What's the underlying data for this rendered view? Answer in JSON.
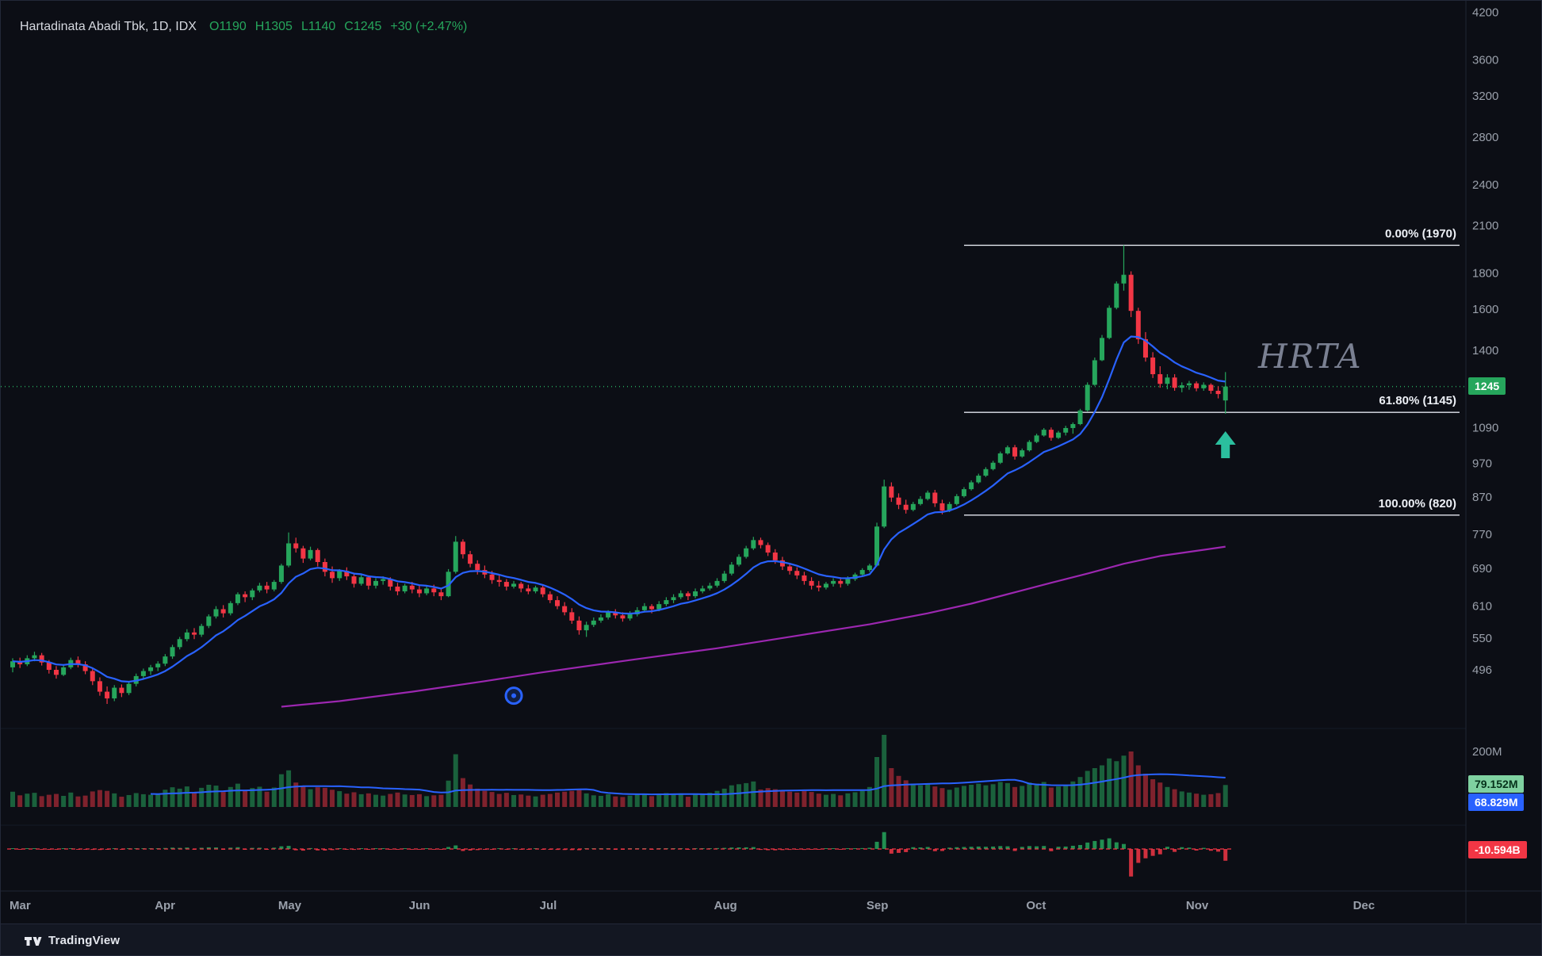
{
  "header": {
    "symbol_title": "Hartadinata Abadi Tbk, 1D, IDX",
    "open": "O1190",
    "high": "H1305",
    "low": "L1140",
    "close": "C1245",
    "change": "+30 (+2.47%)"
  },
  "watermark": {
    "text": "HRTA"
  },
  "price_axis": {
    "ticks": [
      4200,
      3600,
      3200,
      2800,
      2400,
      2100,
      1800,
      1600,
      1400,
      1090,
      970,
      870,
      770,
      690,
      610,
      550,
      496
    ],
    "volume_tick": "200M",
    "last_price_badge": "1245",
    "volume_badge": "79.152M",
    "volume_ma_badge": "68.829M",
    "net_flow_badge": "-10.594B",
    "badge_colors": {
      "last_price_bg": "#26a65c",
      "volume_bg": "#7fd1a0",
      "volume_text": "#06321b",
      "volume_ma_bg": "#2962ff",
      "net_flow_bg": "#f23645"
    }
  },
  "time_axis": {
    "months": [
      {
        "label": "Mar",
        "bar": 0
      },
      {
        "label": "Apr",
        "bar": 20
      },
      {
        "label": "May",
        "bar": 37
      },
      {
        "label": "Jun",
        "bar": 55
      },
      {
        "label": "Jul",
        "bar": 73
      },
      {
        "label": "Aug",
        "bar": 97
      },
      {
        "label": "Sep",
        "bar": 118
      },
      {
        "label": "Oct",
        "bar": 140
      },
      {
        "label": "Nov",
        "bar": 162
      },
      {
        "label": "Dec",
        "bar": 185
      }
    ]
  },
  "footer": {
    "brand": "TradingView"
  },
  "chart_data": {
    "type": "candlestick",
    "symbol": "HRTA",
    "name": "Hartadinata Abadi Tbk",
    "exchange": "IDX",
    "interval": "1D",
    "scale": "log",
    "visible_price_range": [
      440,
      4200
    ],
    "visible_time_range": [
      "Mar",
      "Dec"
    ],
    "last": {
      "open": 1190,
      "high": 1305,
      "low": 1140,
      "close": 1245,
      "change": 30,
      "change_pct": 2.47,
      "prev_close": 1215
    },
    "fib_levels": [
      {
        "label": "0.00% (1970)",
        "pct": 0.0,
        "price": 1970
      },
      {
        "label": "61.80% (1145)",
        "pct": 61.8,
        "price": 1145
      },
      {
        "label": "100.00% (820)",
        "pct": 100.0,
        "price": 820
      }
    ],
    "colors": {
      "up": "#26a65c",
      "down": "#f23645",
      "vol_up": "rgba(38,166,92,0.55)",
      "vol_down": "rgba(242,54,69,0.5)",
      "flow_up": "#26a65c",
      "flow_down": "#f23645",
      "ma_fast": "#2962ff",
      "ma_slow": "#9c27b0",
      "fib": "#e3e6ee",
      "arrow": "#2bbf9e"
    },
    "overlays": {
      "fast_ma": "EMA10 (computed from closes)",
      "long_ma_points": [
        [
          37,
          440
        ],
        [
          45,
          448
        ],
        [
          55,
          462
        ],
        [
          65,
          478
        ],
        [
          73,
          492
        ],
        [
          85,
          512
        ],
        [
          97,
          532
        ],
        [
          107,
          552
        ],
        [
          118,
          575
        ],
        [
          126,
          596
        ],
        [
          132,
          615
        ],
        [
          138,
          638
        ],
        [
          143,
          658
        ],
        [
          148,
          678
        ],
        [
          153,
          700
        ],
        [
          158,
          718
        ],
        [
          163,
          730
        ],
        [
          167,
          740
        ]
      ],
      "volume_ma_period": 20
    },
    "markers": {
      "arrow_up": {
        "bar": 167
      },
      "circle": {
        "bar": 69,
        "price": 456
      }
    },
    "candles": [
      [
        500,
        515,
        492,
        510,
        55,
        0.4
      ],
      [
        510,
        516,
        499,
        505,
        42,
        -0.3
      ],
      [
        505,
        520,
        502,
        515,
        48,
        0.6
      ],
      [
        515,
        526,
        510,
        520,
        51,
        0.5
      ],
      [
        520,
        524,
        503,
        508,
        39,
        -0.4
      ],
      [
        508,
        512,
        490,
        496,
        44,
        -0.6
      ],
      [
        496,
        502,
        482,
        488,
        47,
        -0.5
      ],
      [
        488,
        504,
        486,
        500,
        40,
        0.3
      ],
      [
        500,
        516,
        497,
        512,
        52,
        0.7
      ],
      [
        512,
        518,
        500,
        505,
        38,
        -0.2
      ],
      [
        505,
        510,
        489,
        494,
        41,
        -0.4
      ],
      [
        494,
        498,
        472,
        478,
        56,
        -0.8
      ],
      [
        478,
        484,
        456,
        462,
        61,
        -0.9
      ],
      [
        462,
        470,
        444,
        452,
        58,
        -0.7
      ],
      [
        452,
        472,
        448,
        468,
        49,
        0.4
      ],
      [
        468,
        473,
        454,
        460,
        37,
        -0.3
      ],
      [
        460,
        478,
        457,
        474,
        43,
        0.5
      ],
      [
        474,
        490,
        470,
        486,
        50,
        0.6
      ],
      [
        486,
        498,
        482,
        494,
        46,
        0.4
      ],
      [
        494,
        504,
        488,
        500,
        44,
        0.3
      ],
      [
        500,
        510,
        494,
        506,
        48,
        0.5
      ],
      [
        506,
        522,
        502,
        518,
        62,
        0.9
      ],
      [
        518,
        538,
        514,
        534,
        71,
        1.2
      ],
      [
        534,
        552,
        530,
        548,
        66,
        1.0
      ],
      [
        548,
        566,
        544,
        560,
        74,
        1.3
      ],
      [
        560,
        568,
        548,
        556,
        52,
        -0.4
      ],
      [
        556,
        576,
        552,
        572,
        69,
        1.1
      ],
      [
        572,
        594,
        568,
        590,
        80,
        1.5
      ],
      [
        590,
        610,
        586,
        604,
        77,
        1.4
      ],
      [
        604,
        612,
        588,
        596,
        54,
        -0.5
      ],
      [
        596,
        620,
        592,
        616,
        72,
        1.2
      ],
      [
        616,
        638,
        612,
        634,
        84,
        1.6
      ],
      [
        634,
        640,
        618,
        628,
        58,
        -0.6
      ],
      [
        628,
        646,
        622,
        642,
        68,
        1.0
      ],
      [
        642,
        658,
        638,
        652,
        73,
        1.1
      ],
      [
        652,
        660,
        636,
        644,
        55,
        -0.5
      ],
      [
        644,
        664,
        640,
        660,
        70,
        1.2
      ],
      [
        660,
        700,
        656,
        696,
        118,
        2.4
      ],
      [
        696,
        775,
        692,
        748,
        132,
        2.8
      ],
      [
        748,
        762,
        726,
        736,
        88,
        -1.2
      ],
      [
        736,
        742,
        702,
        712,
        76,
        -1.5
      ],
      [
        712,
        740,
        708,
        732,
        64,
        0.8
      ],
      [
        732,
        736,
        694,
        704,
        71,
        -1.3
      ],
      [
        704,
        712,
        672,
        682,
        69,
        -1.4
      ],
      [
        682,
        694,
        658,
        668,
        62,
        -1.0
      ],
      [
        668,
        688,
        662,
        684,
        57,
        0.6
      ],
      [
        684,
        692,
        664,
        672,
        48,
        -0.5
      ],
      [
        672,
        680,
        648,
        656,
        53,
        -0.8
      ],
      [
        656,
        676,
        652,
        670,
        46,
        0.5
      ],
      [
        670,
        674,
        644,
        652,
        49,
        -0.6
      ],
      [
        652,
        668,
        646,
        662,
        44,
        0.4
      ],
      [
        662,
        672,
        654,
        666,
        41,
        0.3
      ],
      [
        666,
        670,
        642,
        650,
        47,
        -0.5
      ],
      [
        650,
        658,
        632,
        640,
        52,
        -0.7
      ],
      [
        640,
        656,
        636,
        652,
        45,
        0.4
      ],
      [
        652,
        660,
        636,
        644,
        43,
        -0.3
      ],
      [
        644,
        652,
        628,
        636,
        46,
        -0.4
      ],
      [
        636,
        650,
        632,
        646,
        39,
        0.3
      ],
      [
        646,
        654,
        630,
        638,
        42,
        -0.3
      ],
      [
        638,
        646,
        622,
        630,
        44,
        -0.5
      ],
      [
        630,
        688,
        628,
        682,
        95,
        1.8
      ],
      [
        682,
        766,
        678,
        752,
        190,
        3.2
      ],
      [
        752,
        758,
        712,
        722,
        104,
        -1.8
      ],
      [
        722,
        730,
        692,
        700,
        81,
        -1.4
      ],
      [
        700,
        708,
        676,
        686,
        66,
        -1.0
      ],
      [
        686,
        696,
        668,
        676,
        58,
        -0.7
      ],
      [
        676,
        684,
        656,
        664,
        54,
        -0.6
      ],
      [
        664,
        674,
        650,
        660,
        47,
        0.4
      ],
      [
        660,
        666,
        642,
        650,
        51,
        -0.5
      ],
      [
        650,
        662,
        646,
        656,
        43,
        0.3
      ],
      [
        656,
        660,
        638,
        646,
        45,
        -0.4
      ],
      [
        646,
        654,
        634,
        640,
        41,
        -0.3
      ],
      [
        640,
        652,
        636,
        648,
        38,
        0.3
      ],
      [
        648,
        652,
        628,
        634,
        44,
        -0.5
      ],
      [
        634,
        640,
        616,
        622,
        47,
        -0.6
      ],
      [
        622,
        630,
        604,
        610,
        52,
        -0.8
      ],
      [
        610,
        618,
        592,
        598,
        55,
        -0.9
      ],
      [
        598,
        606,
        576,
        582,
        58,
        -1.0
      ],
      [
        582,
        590,
        556,
        564,
        61,
        -1.1
      ],
      [
        564,
        580,
        552,
        574,
        49,
        0.5
      ],
      [
        574,
        588,
        570,
        582,
        42,
        0.4
      ],
      [
        582,
        594,
        578,
        588,
        40,
        0.3
      ],
      [
        588,
        602,
        584,
        598,
        46,
        0.5
      ],
      [
        598,
        604,
        586,
        592,
        38,
        -0.3
      ],
      [
        592,
        598,
        580,
        586,
        36,
        -0.3
      ],
      [
        586,
        600,
        582,
        594,
        41,
        0.4
      ],
      [
        594,
        608,
        590,
        602,
        45,
        0.5
      ],
      [
        602,
        616,
        598,
        610,
        48,
        0.6
      ],
      [
        610,
        614,
        596,
        604,
        39,
        -0.3
      ],
      [
        604,
        620,
        600,
        614,
        47,
        0.5
      ],
      [
        614,
        628,
        610,
        622,
        50,
        0.6
      ],
      [
        622,
        634,
        616,
        628,
        44,
        0.4
      ],
      [
        628,
        642,
        624,
        636,
        49,
        0.5
      ],
      [
        636,
        640,
        622,
        630,
        37,
        -0.3
      ],
      [
        630,
        646,
        626,
        640,
        48,
        0.5
      ],
      [
        640,
        652,
        636,
        646,
        46,
        0.4
      ],
      [
        646,
        658,
        642,
        652,
        51,
        0.6
      ],
      [
        652,
        668,
        648,
        662,
        58,
        0.8
      ],
      [
        662,
        684,
        658,
        678,
        66,
        1.0
      ],
      [
        678,
        704,
        674,
        698,
        78,
        1.3
      ],
      [
        698,
        722,
        694,
        716,
        82,
        1.4
      ],
      [
        716,
        742,
        712,
        736,
        86,
        1.5
      ],
      [
        736,
        764,
        732,
        756,
        92,
        1.7
      ],
      [
        756,
        762,
        736,
        744,
        63,
        -0.8
      ],
      [
        744,
        750,
        718,
        726,
        68,
        -1.1
      ],
      [
        726,
        734,
        700,
        708,
        64,
        -1.2
      ],
      [
        708,
        716,
        686,
        694,
        59,
        -1.0
      ],
      [
        694,
        702,
        676,
        684,
        55,
        -0.8
      ],
      [
        684,
        692,
        666,
        674,
        52,
        -0.7
      ],
      [
        674,
        682,
        654,
        662,
        57,
        -0.8
      ],
      [
        662,
        670,
        644,
        652,
        54,
        -0.7
      ],
      [
        652,
        662,
        640,
        648,
        48,
        -0.5
      ],
      [
        648,
        660,
        644,
        656,
        44,
        0.4
      ],
      [
        656,
        668,
        650,
        662,
        47,
        0.5
      ],
      [
        662,
        670,
        648,
        656,
        42,
        -0.4
      ],
      [
        656,
        672,
        652,
        666,
        49,
        0.5
      ],
      [
        666,
        680,
        662,
        676,
        53,
        0.6
      ],
      [
        676,
        690,
        672,
        686,
        58,
        0.8
      ],
      [
        686,
        700,
        682,
        696,
        72,
        1.1
      ],
      [
        696,
        800,
        694,
        790,
        180,
        6.5
      ],
      [
        790,
        920,
        786,
        900,
        260,
        15.2
      ],
      [
        900,
        912,
        856,
        868,
        140,
        -4.2
      ],
      [
        868,
        880,
        836,
        848,
        112,
        -3.5
      ],
      [
        848,
        862,
        824,
        834,
        96,
        -2.8
      ],
      [
        834,
        856,
        830,
        850,
        84,
        1.6
      ],
      [
        850,
        872,
        846,
        864,
        78,
        1.4
      ],
      [
        864,
        888,
        860,
        882,
        82,
        1.8
      ],
      [
        882,
        890,
        842,
        852,
        74,
        -2.0
      ],
      [
        852,
        862,
        822,
        832,
        68,
        -1.8
      ],
      [
        832,
        856,
        828,
        850,
        62,
        1.2
      ],
      [
        850,
        878,
        846,
        872,
        70,
        1.6
      ],
      [
        872,
        898,
        868,
        892,
        76,
        1.8
      ],
      [
        892,
        918,
        888,
        912,
        80,
        2.0
      ],
      [
        912,
        938,
        908,
        932,
        84,
        2.2
      ],
      [
        932,
        958,
        928,
        952,
        78,
        2.0
      ],
      [
        952,
        978,
        948,
        972,
        82,
        2.2
      ],
      [
        972,
        1008,
        968,
        1002,
        90,
        2.6
      ],
      [
        1002,
        1028,
        998,
        1022,
        86,
        2.4
      ],
      [
        1022,
        1030,
        982,
        992,
        72,
        -1.8
      ],
      [
        992,
        1018,
        988,
        1012,
        76,
        1.9
      ],
      [
        1012,
        1046,
        1008,
        1040,
        88,
        2.6
      ],
      [
        1040,
        1068,
        1036,
        1062,
        84,
        2.4
      ],
      [
        1062,
        1088,
        1058,
        1082,
        90,
        2.7
      ],
      [
        1082,
        1090,
        1044,
        1054,
        70,
        -2.0
      ],
      [
        1054,
        1078,
        1050,
        1072,
        74,
        2.0
      ],
      [
        1072,
        1096,
        1062,
        1088,
        78,
        2.2
      ],
      [
        1088,
        1108,
        1068,
        1102,
        92,
        2.9
      ],
      [
        1102,
        1158,
        1098,
        1152,
        108,
        3.6
      ],
      [
        1152,
        1262,
        1148,
        1252,
        130,
        5.8
      ],
      [
        1252,
        1368,
        1248,
        1356,
        140,
        7.2
      ],
      [
        1356,
        1472,
        1352,
        1458,
        150,
        8.4
      ],
      [
        1458,
        1620,
        1452,
        1608,
        175,
        9.6
      ],
      [
        1608,
        1752,
        1600,
        1740,
        165,
        6.0
      ],
      [
        1740,
        1970,
        1700,
        1790,
        185,
        4.5
      ],
      [
        1790,
        1810,
        1560,
        1592,
        200,
        -24.8
      ],
      [
        1592,
        1608,
        1430,
        1452,
        150,
        -12.5
      ],
      [
        1452,
        1486,
        1350,
        1368,
        120,
        -8.4
      ],
      [
        1368,
        1392,
        1280,
        1296,
        100,
        -6.2
      ],
      [
        1296,
        1330,
        1240,
        1256,
        88,
        -4.8
      ],
      [
        1256,
        1296,
        1234,
        1282,
        72,
        2.0
      ],
      [
        1282,
        1296,
        1228,
        1240,
        64,
        -2.6
      ],
      [
        1240,
        1262,
        1222,
        1250,
        56,
        1.6
      ],
      [
        1250,
        1268,
        1232,
        1258,
        52,
        1.2
      ],
      [
        1258,
        1266,
        1226,
        1238,
        48,
        -1.4
      ],
      [
        1238,
        1262,
        1228,
        1252,
        44,
        1.0
      ],
      [
        1252,
        1258,
        1216,
        1228,
        46,
        -1.6
      ],
      [
        1228,
        1246,
        1198,
        1215,
        50,
        -2.4
      ],
      [
        1190,
        1305,
        1140,
        1245,
        79.152,
        -10.594
      ]
    ]
  }
}
